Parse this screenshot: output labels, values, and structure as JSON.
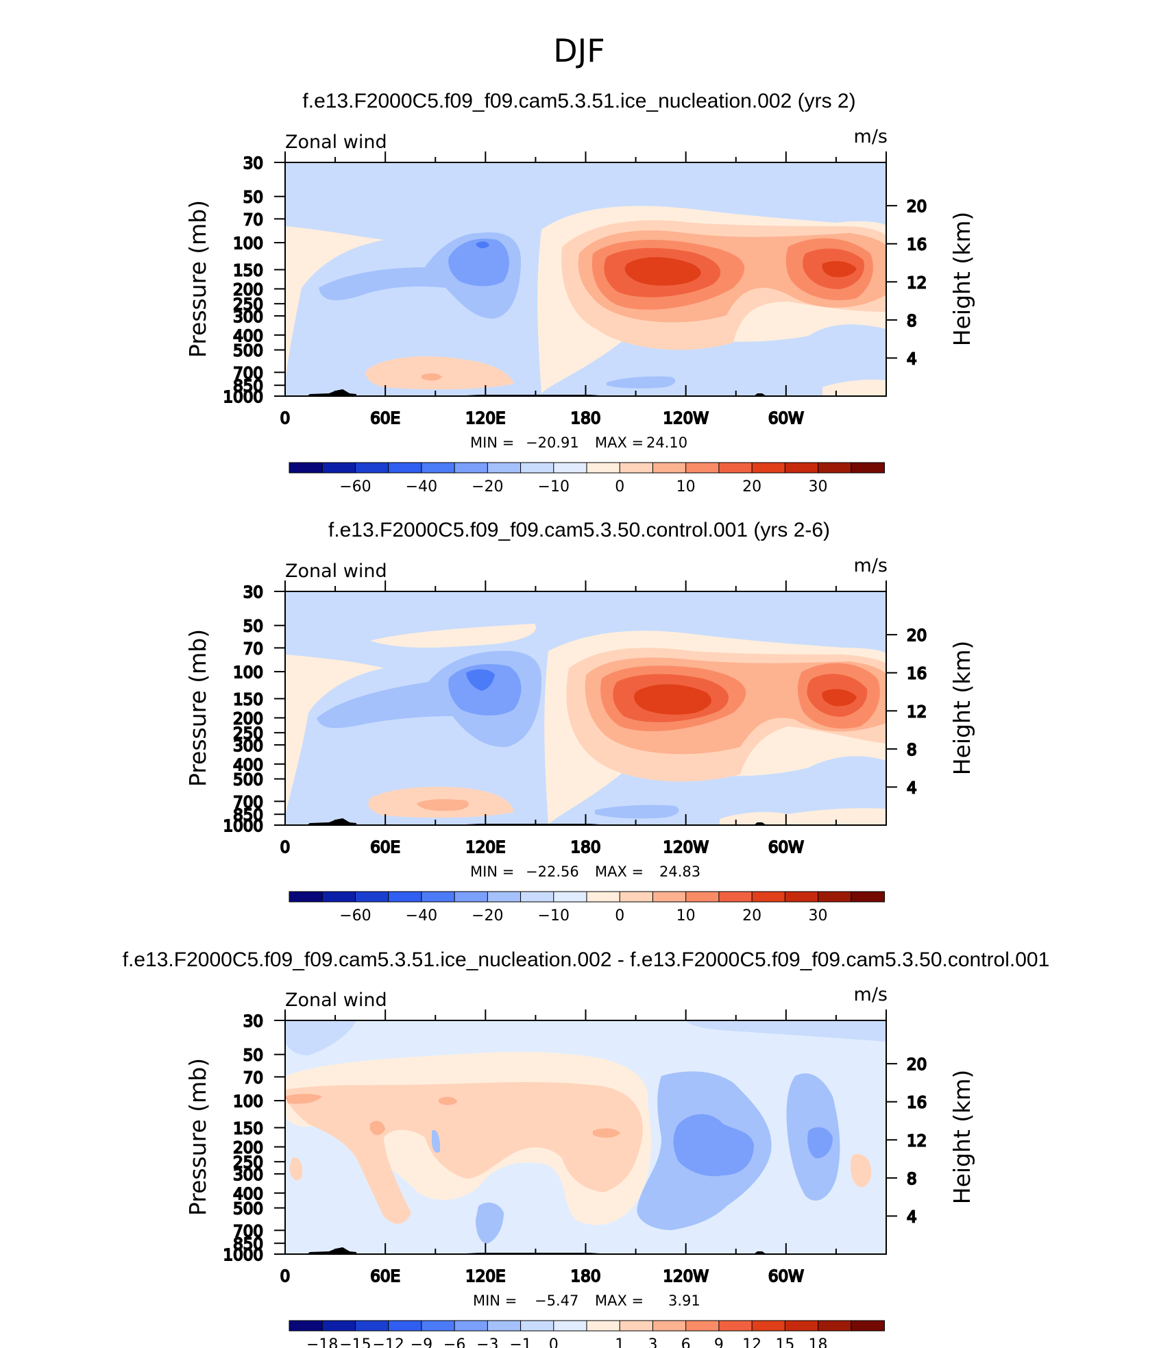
{
  "figure": {
    "season_title": "DJF"
  },
  "chart_data": [
    {
      "type": "contour",
      "title": "f.e13.F2000C5.f09_f09.cam5.3.51.ice_nucleation.002 (yrs 2)",
      "left_string": "Zonal wind",
      "right_string": "m/s",
      "ylabel": "Pressure (mb)",
      "ylabel_right": "Height (km)",
      "x_ticks": [
        "0",
        "60E",
        "120E",
        "180",
        "120W",
        "60W"
      ],
      "y_ticks": [
        "30",
        "50",
        "70",
        "100",
        "150",
        "200",
        "250",
        "300",
        "400",
        "500",
        "700",
        "850",
        "1000"
      ],
      "y_ticks_right": [
        "20",
        "16",
        "12",
        "8",
        "4"
      ],
      "stats": {
        "min_label": "MIN =",
        "min": "−20.91",
        "max_label": "MAX =",
        "max": "24.10"
      },
      "colorbar": {
        "colors": [
          "#07077a",
          "#0b1ea8",
          "#1a3fd0",
          "#2f5ef0",
          "#4c7bf7",
          "#7aa0fb",
          "#a4c1fc",
          "#c9dcfd",
          "#e1edfe",
          "#ffeedd",
          "#ffd4bb",
          "#fdb290",
          "#f98c67",
          "#f0623f",
          "#e03f19",
          "#c62a0c",
          "#9b1a06",
          "#730901"
        ],
        "labels": [
          "−60",
          "−40",
          "−20",
          "−10",
          "0",
          "10",
          "20",
          "30"
        ],
        "label_boundaries": [
          2,
          4,
          6,
          8,
          10,
          12,
          14,
          16
        ]
      }
    },
    {
      "type": "contour",
      "title": "f.e13.F2000C5.f09_f09.cam5.3.50.control.001 (yrs 2-6)",
      "left_string": "Zonal wind",
      "right_string": "m/s",
      "ylabel": "Pressure (mb)",
      "ylabel_right": "Height (km)",
      "x_ticks": [
        "0",
        "60E",
        "120E",
        "180",
        "120W",
        "60W"
      ],
      "y_ticks": [
        "30",
        "50",
        "70",
        "100",
        "150",
        "200",
        "250",
        "300",
        "400",
        "500",
        "700",
        "850",
        "1000"
      ],
      "y_ticks_right": [
        "20",
        "16",
        "12",
        "8",
        "4"
      ],
      "stats": {
        "min_label": "MIN =",
        "min": "−22.56",
        "max_label": "MAX =",
        "max": "24.83"
      },
      "colorbar": {
        "colors": [
          "#07077a",
          "#0b1ea8",
          "#1a3fd0",
          "#2f5ef0",
          "#4c7bf7",
          "#7aa0fb",
          "#a4c1fc",
          "#c9dcfd",
          "#e1edfe",
          "#ffeedd",
          "#ffd4bb",
          "#fdb290",
          "#f98c67",
          "#f0623f",
          "#e03f19",
          "#c62a0c",
          "#9b1a06",
          "#730901"
        ],
        "labels": [
          "−60",
          "−40",
          "−20",
          "−10",
          "0",
          "10",
          "20",
          "30"
        ],
        "label_boundaries": [
          2,
          4,
          6,
          8,
          10,
          12,
          14,
          16
        ]
      }
    },
    {
      "type": "contour",
      "title": "f.e13.F2000C5.f09_f09.cam5.3.51.ice_nucleation.002 - f.e13.F2000C5.f09_f09.cam5.3.50.control.001",
      "left_string": "Zonal wind",
      "right_string": "m/s",
      "ylabel": "Pressure (mb)",
      "ylabel_right": "Height (km)",
      "x_ticks": [
        "0",
        "60E",
        "120E",
        "180",
        "120W",
        "60W"
      ],
      "y_ticks": [
        "30",
        "50",
        "70",
        "100",
        "150",
        "200",
        "250",
        "300",
        "400",
        "500",
        "700",
        "850",
        "1000"
      ],
      "y_ticks_right": [
        "20",
        "16",
        "12",
        "8",
        "4"
      ],
      "stats": {
        "min_label": "MIN =",
        "min": "−5.47",
        "max_label": "MAX =",
        "max": "3.91"
      },
      "colorbar": {
        "colors": [
          "#07077a",
          "#0b1ea8",
          "#1a3fd0",
          "#2f5ef0",
          "#4c7bf7",
          "#7aa0fb",
          "#a4c1fc",
          "#c9dcfd",
          "#e1edfe",
          "#ffeedd",
          "#ffd4bb",
          "#fdb290",
          "#f98c67",
          "#f0623f",
          "#e03f19",
          "#c62a0c",
          "#9b1a06",
          "#730901"
        ],
        "labels": [
          "−18",
          "−15",
          "−12",
          "−9",
          "−6",
          "−3",
          "−1",
          "0",
          "1",
          "3",
          "6",
          "9",
          "12",
          "15",
          "18"
        ],
        "label_boundaries": [
          1,
          2,
          3,
          4,
          5,
          6,
          7,
          8,
          10,
          11,
          12,
          13,
          14,
          15,
          16
        ]
      }
    }
  ]
}
